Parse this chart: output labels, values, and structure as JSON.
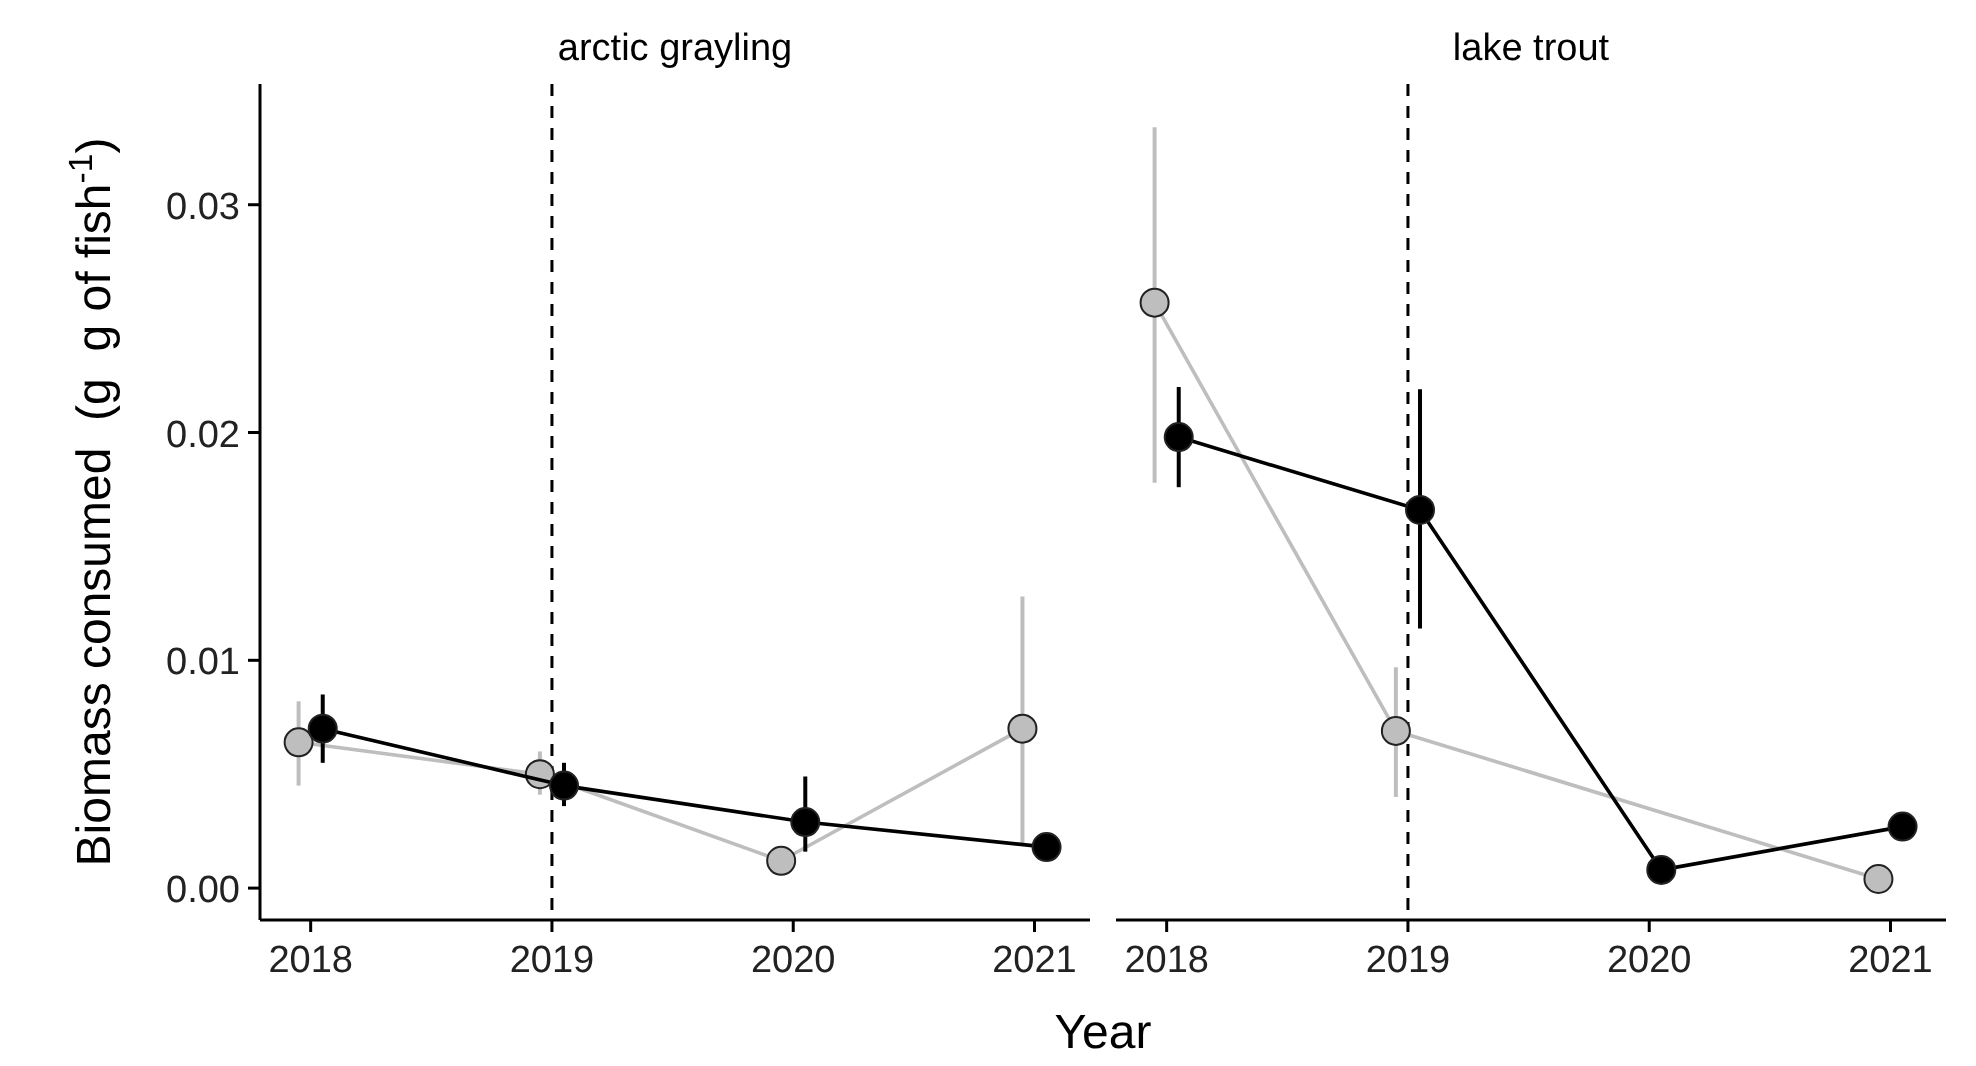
{
  "chart_data": [
    {
      "type": "line",
      "title": "arctic grayling",
      "xlabel": "Year",
      "ylabel": "Biomass consumed  (g  g of fish$^{-1}$)",
      "xlim": [
        2017.79,
        2021.23
      ],
      "xticks": [
        2018,
        2019,
        2020,
        2021
      ],
      "ylim": [
        -0.0014,
        0.0353
      ],
      "yticks": [
        {
          "value": 0,
          "label": "0.00"
        },
        {
          "value": 0.01,
          "label": "0.01"
        },
        {
          "value": 0.02,
          "label": "0.02"
        },
        {
          "value": 0.03,
          "label": "0.03"
        }
      ],
      "marker": "circle",
      "grid": false,
      "ref_lines": [
        {
          "axis": "x",
          "value": 2019,
          "line_style": "dashed",
          "color": "#000000"
        }
      ],
      "series": [
        {
          "color": "#bebebe",
          "x": [
            2017.95,
            2018.95,
            2019.95,
            2020.95
          ],
          "values": [
            0.0064,
            0.005,
            0.0012,
            0.007
          ],
          "errors": [
            [
              0.0045,
              0.0082
            ],
            [
              0.0041,
              0.006
            ],
            null,
            [
              0.0019,
              0.0128
            ]
          ]
        },
        {
          "color": "#000000",
          "x": [
            2018.05,
            2019.05,
            2020.05,
            2021.05
          ],
          "values": [
            0.007,
            0.0045,
            0.0029,
            0.0018
          ],
          "errors": [
            [
              0.0055,
              0.0085
            ],
            [
              0.0036,
              0.0055
            ],
            [
              0.0016,
              0.0049
            ],
            null
          ]
        }
      ]
    },
    {
      "type": "line",
      "title": "lake trout",
      "xlim": [
        2017.79,
        2021.23
      ],
      "xticks": [
        2018,
        2019,
        2020,
        2021
      ],
      "ylim": [
        -0.0014,
        0.0353
      ],
      "tick_labels": "x",
      "marker": "circle",
      "grid": false,
      "ref_lines": [
        {
          "axis": "x",
          "value": 2019,
          "line_style": "dashed",
          "color": "#000000"
        }
      ],
      "series": [
        {
          "color": "#bebebe",
          "x": [
            2017.95,
            2018.95,
            2019.95,
            2020.95
          ],
          "values": [
            0.0257,
            0.0069,
            null,
            0.0004
          ],
          "errors": [
            [
              0.0178,
              0.0334
            ],
            [
              0.004,
              0.0097
            ],
            null,
            null
          ]
        },
        {
          "color": "#000000",
          "x": [
            2018.05,
            2019.05,
            2020.05,
            2021.05
          ],
          "values": [
            0.0198,
            0.0166,
            0.0008,
            0.0027
          ],
          "errors": [
            [
              0.0176,
              0.022
            ],
            [
              0.0114,
              0.0219
            ],
            null,
            null
          ]
        }
      ]
    }
  ]
}
